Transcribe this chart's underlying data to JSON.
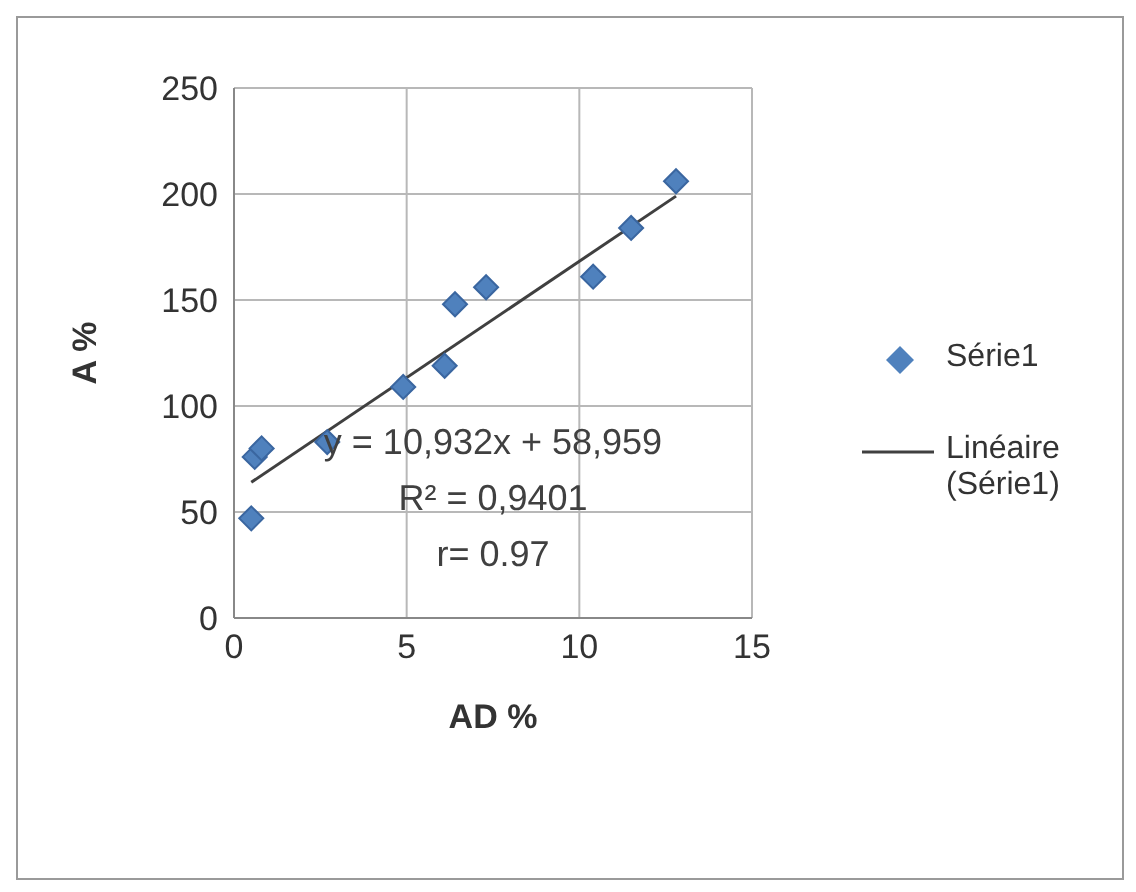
{
  "chart_data": {
    "type": "scatter",
    "xlabel": "AD %",
    "ylabel": "A %",
    "xlim": [
      0,
      15
    ],
    "xticks": [
      0,
      5,
      10,
      15
    ],
    "ylim": [
      0,
      250
    ],
    "yticks": [
      0,
      50,
      100,
      150,
      200,
      250
    ],
    "grid": true,
    "legend": "right",
    "series": [
      {
        "name": "Série1",
        "marker": "diamond",
        "color": "#4f81bd",
        "x": [
          0.5,
          0.6,
          0.8,
          2.7,
          4.9,
          6.1,
          6.4,
          7.3,
          10.4,
          11.5,
          12.8
        ],
        "values": [
          47,
          76,
          80,
          83,
          109,
          119,
          148,
          156,
          161,
          184,
          206
        ]
      },
      {
        "name": "Linéaire (Série1)",
        "type": "line",
        "marker": "none",
        "color": "#404040",
        "x": [
          0.5,
          12.8
        ],
        "values": [
          64,
          199
        ]
      }
    ],
    "annotations": [
      "y = 10,932x + 58,959",
      "R² = 0,9401",
      "r= 0.97"
    ]
  }
}
